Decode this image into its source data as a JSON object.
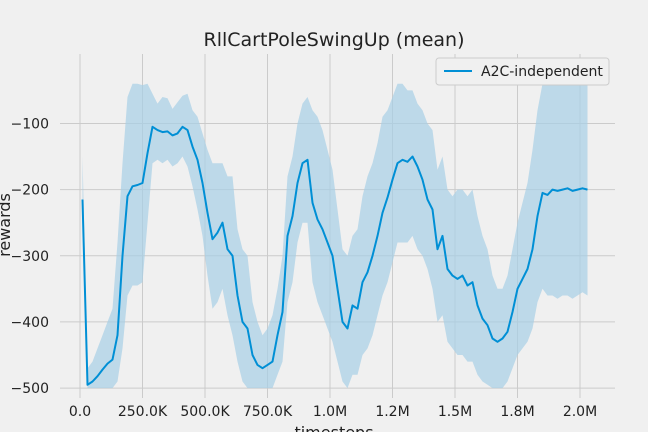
{
  "chart_data": {
    "type": "line",
    "title": "RllCartPoleSwingUp (mean)",
    "xlabel": "timesteps",
    "ylabel": "rewards",
    "xlim": [
      -80000,
      2140000
    ],
    "ylim": [
      -515,
      5
    ],
    "xticks": [
      0,
      250000,
      500000,
      750000,
      1000000,
      1250000,
      1500000,
      1750000,
      2000000
    ],
    "xtick_labels": [
      "0.0",
      "250.0K",
      "500.0K",
      "750.0K",
      "1.0M",
      "1.2M",
      "1.5M",
      "1.8M",
      "2.0M"
    ],
    "yticks": [
      -500,
      -400,
      -300,
      -200,
      -100
    ],
    "ytick_labels": [
      "−500",
      "−400",
      "−300",
      "−200",
      "−100"
    ],
    "grid": true,
    "legend_position": "top-right",
    "colors": {
      "line": "#008fd5",
      "band": "#a6cfe6",
      "background": "#f0f0f0",
      "grid": "#cbcbcb"
    },
    "series": [
      {
        "name": "A2C-independent",
        "x": [
          10000,
          30000,
          50000,
          70000,
          90000,
          110000,
          130000,
          150000,
          170000,
          190000,
          210000,
          230000,
          250000,
          270000,
          290000,
          310000,
          330000,
          350000,
          370000,
          390000,
          410000,
          430000,
          450000,
          470000,
          490000,
          510000,
          530000,
          550000,
          570000,
          590000,
          610000,
          630000,
          650000,
          670000,
          690000,
          710000,
          730000,
          750000,
          770000,
          790000,
          810000,
          830000,
          850000,
          870000,
          890000,
          910000,
          930000,
          950000,
          970000,
          990000,
          1010000,
          1030000,
          1050000,
          1070000,
          1090000,
          1110000,
          1130000,
          1150000,
          1170000,
          1190000,
          1210000,
          1230000,
          1250000,
          1270000,
          1290000,
          1310000,
          1330000,
          1350000,
          1370000,
          1390000,
          1410000,
          1430000,
          1450000,
          1470000,
          1490000,
          1510000,
          1530000,
          1550000,
          1570000,
          1590000,
          1610000,
          1630000,
          1650000,
          1670000,
          1690000,
          1710000,
          1730000,
          1750000,
          1770000,
          1790000,
          1810000,
          1830000,
          1850000,
          1870000,
          1890000,
          1910000,
          1930000,
          1950000,
          1970000,
          1990000,
          2010000,
          2030000
        ],
        "values": [
          -215,
          -495,
          -490,
          -482,
          -472,
          -463,
          -457,
          -420,
          -300,
          -210,
          -195,
          -193,
          -190,
          -145,
          -105,
          -110,
          -113,
          -112,
          -118,
          -115,
          -105,
          -110,
          -135,
          -155,
          -190,
          -235,
          -275,
          -265,
          -250,
          -290,
          -300,
          -360,
          -400,
          -410,
          -450,
          -465,
          -470,
          -465,
          -460,
          -420,
          -385,
          -270,
          -240,
          -190,
          -160,
          -155,
          -220,
          -245,
          -260,
          -280,
          -300,
          -350,
          -400,
          -410,
          -375,
          -380,
          -340,
          -325,
          -300,
          -270,
          -235,
          -212,
          -185,
          -160,
          -155,
          -158,
          -150,
          -165,
          -185,
          -215,
          -230,
          -290,
          -270,
          -320,
          -330,
          -335,
          -330,
          -345,
          -340,
          -375,
          -395,
          -405,
          -425,
          -430,
          -425,
          -415,
          -385,
          -350,
          -335,
          -320,
          -290,
          -240,
          -205,
          -208,
          -200,
          -202,
          -200,
          -198,
          -202,
          -200,
          -198,
          -200
        ],
        "upper": [
          -150,
          -470,
          -460,
          -440,
          -420,
          -400,
          -380,
          -280,
          -160,
          -60,
          -40,
          -40,
          -42,
          -40,
          -55,
          -70,
          -60,
          -62,
          -78,
          -68,
          -58,
          -55,
          -80,
          -90,
          -115,
          -140,
          -160,
          -160,
          -160,
          -180,
          -180,
          -260,
          -290,
          -300,
          -370,
          -400,
          -420,
          -410,
          -390,
          -350,
          -300,
          -180,
          -150,
          -100,
          -70,
          -60,
          -80,
          -90,
          -110,
          -140,
          -170,
          -230,
          -290,
          -300,
          -270,
          -260,
          -210,
          -180,
          -160,
          -130,
          -90,
          -80,
          -60,
          -40,
          -40,
          -50,
          -50,
          -70,
          -80,
          -100,
          -110,
          -170,
          -150,
          -200,
          -210,
          -200,
          -200,
          -210,
          -200,
          -240,
          -270,
          -290,
          -330,
          -350,
          -350,
          -330,
          -290,
          -250,
          -220,
          -190,
          -140,
          -80,
          -40,
          -35,
          -30,
          -30,
          -25,
          -25,
          -30,
          -25,
          -30,
          -30
        ],
        "lower": [
          -250,
          -500,
          -500,
          -500,
          -500,
          -500,
          -500,
          -490,
          -440,
          -360,
          -345,
          -345,
          -340,
          -250,
          -160,
          -155,
          -160,
          -155,
          -165,
          -160,
          -150,
          -165,
          -195,
          -230,
          -270,
          -330,
          -380,
          -370,
          -350,
          -390,
          -420,
          -460,
          -490,
          -500,
          -500,
          -500,
          -500,
          -500,
          -500,
          -480,
          -460,
          -370,
          -340,
          -280,
          -250,
          -250,
          -340,
          -370,
          -390,
          -410,
          -430,
          -460,
          -490,
          -500,
          -480,
          -480,
          -450,
          -440,
          -420,
          -390,
          -360,
          -340,
          -310,
          -280,
          -280,
          -280,
          -270,
          -290,
          -300,
          -320,
          -350,
          -400,
          -390,
          -430,
          -440,
          -450,
          -450,
          -460,
          -460,
          -480,
          -490,
          -495,
          -500,
          -500,
          -500,
          -490,
          -470,
          -450,
          -440,
          -430,
          -410,
          -370,
          -350,
          -360,
          -360,
          -365,
          -360,
          -360,
          -365,
          -360,
          -355,
          -360
        ]
      }
    ]
  }
}
